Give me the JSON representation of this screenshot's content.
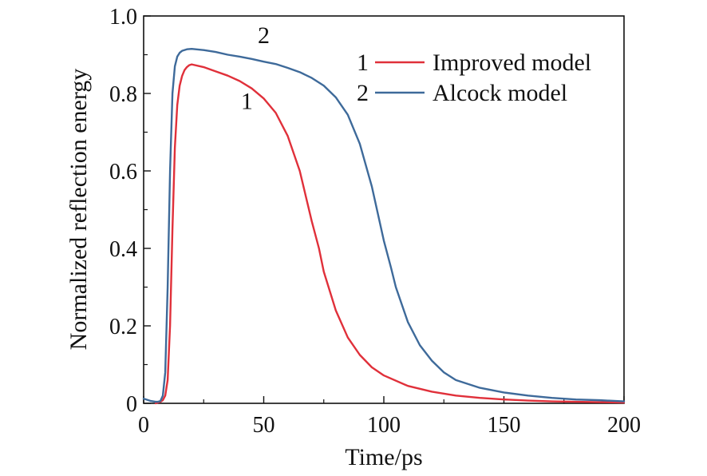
{
  "chart_data": {
    "type": "line",
    "title": "",
    "xlabel": "Time/ps",
    "ylabel": "Normalized reflection energy",
    "xlim": [
      0,
      200
    ],
    "ylim": [
      0,
      1.0
    ],
    "xticks": [
      0,
      50,
      100,
      150,
      200
    ],
    "yticks": [
      0,
      0.2,
      0.4,
      0.6,
      0.8,
      1.0
    ],
    "xtick_labels": [
      "0",
      "50",
      "100",
      "150",
      "200"
    ],
    "ytick_labels": [
      "0",
      "0.2",
      "0.4",
      "0.6",
      "0.8",
      "1.0"
    ],
    "grid": false,
    "legend_position": "top-right",
    "series": [
      {
        "name": "Improved model",
        "number": "1",
        "color": "#e0303a",
        "points": [
          [
            5,
            0
          ],
          [
            6,
            0.002
          ],
          [
            7,
            0.004
          ],
          [
            8,
            0.008
          ],
          [
            9,
            0.02
          ],
          [
            10,
            0.06
          ],
          [
            11,
            0.2
          ],
          [
            12,
            0.45
          ],
          [
            13,
            0.66
          ],
          [
            14,
            0.77
          ],
          [
            15,
            0.82
          ],
          [
            16,
            0.845
          ],
          [
            17,
            0.86
          ],
          [
            18,
            0.868
          ],
          [
            19,
            0.873
          ],
          [
            20,
            0.875
          ],
          [
            25,
            0.868
          ],
          [
            30,
            0.857
          ],
          [
            35,
            0.846
          ],
          [
            40,
            0.832
          ],
          [
            45,
            0.813
          ],
          [
            50,
            0.787
          ],
          [
            55,
            0.75
          ],
          [
            60,
            0.69
          ],
          [
            65,
            0.6
          ],
          [
            70,
            0.47
          ],
          [
            73,
            0.4
          ],
          [
            75,
            0.34
          ],
          [
            80,
            0.24
          ],
          [
            85,
            0.17
          ],
          [
            90,
            0.125
          ],
          [
            95,
            0.093
          ],
          [
            100,
            0.072
          ],
          [
            110,
            0.045
          ],
          [
            120,
            0.03
          ],
          [
            130,
            0.02
          ],
          [
            140,
            0.014
          ],
          [
            150,
            0.01
          ],
          [
            160,
            0.007
          ],
          [
            170,
            0.005
          ],
          [
            180,
            0.004
          ],
          [
            190,
            0.003
          ],
          [
            200,
            0.002
          ]
        ]
      },
      {
        "name": "Alcock model",
        "number": "2",
        "color": "#3e6a9a",
        "points": [
          [
            0,
            0.012
          ],
          [
            1,
            0.01
          ],
          [
            2,
            0.008
          ],
          [
            3,
            0.006
          ],
          [
            4,
            0.005
          ],
          [
            5,
            0.004
          ],
          [
            6,
            0.004
          ],
          [
            7,
            0.006
          ],
          [
            8,
            0.02
          ],
          [
            9,
            0.08
          ],
          [
            10,
            0.3
          ],
          [
            11,
            0.6
          ],
          [
            12,
            0.8
          ],
          [
            13,
            0.87
          ],
          [
            14,
            0.895
          ],
          [
            15,
            0.905
          ],
          [
            16,
            0.91
          ],
          [
            18,
            0.914
          ],
          [
            20,
            0.915
          ],
          [
            25,
            0.912
          ],
          [
            30,
            0.907
          ],
          [
            35,
            0.9
          ],
          [
            40,
            0.895
          ],
          [
            45,
            0.889
          ],
          [
            50,
            0.882
          ],
          [
            55,
            0.876
          ],
          [
            60,
            0.866
          ],
          [
            65,
            0.855
          ],
          [
            70,
            0.84
          ],
          [
            75,
            0.82
          ],
          [
            80,
            0.79
          ],
          [
            85,
            0.745
          ],
          [
            90,
            0.67
          ],
          [
            95,
            0.56
          ],
          [
            100,
            0.42
          ],
          [
            103,
            0.35
          ],
          [
            105,
            0.3
          ],
          [
            110,
            0.21
          ],
          [
            115,
            0.15
          ],
          [
            120,
            0.11
          ],
          [
            125,
            0.08
          ],
          [
            130,
            0.06
          ],
          [
            140,
            0.04
          ],
          [
            150,
            0.028
          ],
          [
            160,
            0.02
          ],
          [
            170,
            0.014
          ],
          [
            180,
            0.01
          ],
          [
            190,
            0.008
          ],
          [
            200,
            0.005
          ]
        ]
      }
    ],
    "annotations": [
      {
        "text": "1",
        "series": "Improved model",
        "x": 43,
        "y": 0.76
      },
      {
        "text": "2",
        "series": "Alcock model",
        "x": 50,
        "y": 0.93
      }
    ]
  }
}
